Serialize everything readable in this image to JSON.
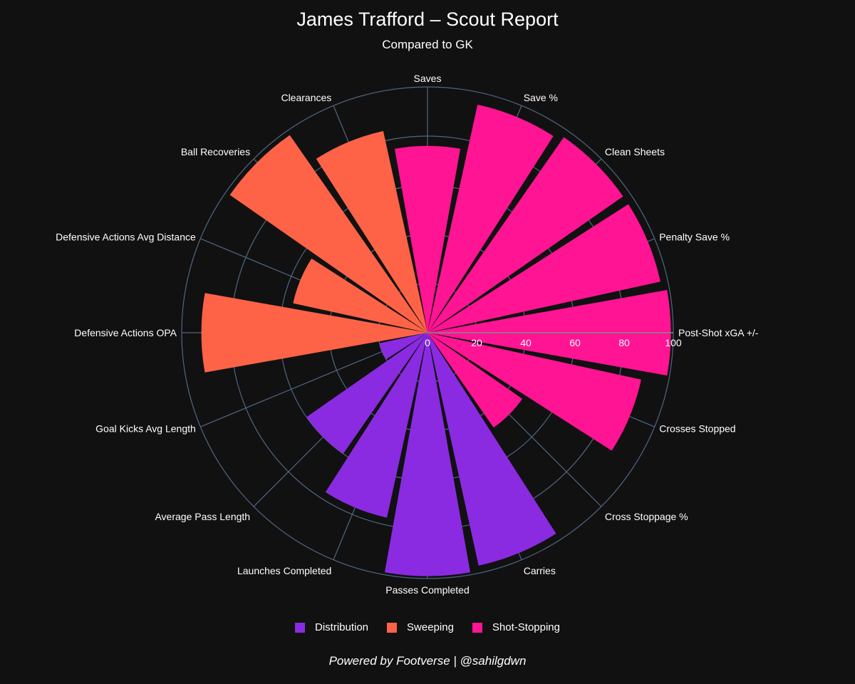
{
  "header": {
    "title": "James Trafford – Scout Report",
    "subtitle": "Compared to GK"
  },
  "footer": {
    "credit": "Powered by Footverse | @sahilgdwn"
  },
  "colors": {
    "background": "#111111",
    "grid": "#506784",
    "Distribution": "#8a2be2",
    "Sweeping": "#ff6347",
    "Shot-Stopping": "#ff1493"
  },
  "chart_data": {
    "type": "barpolar",
    "radial_range": [
      0,
      100
    ],
    "radial_ticks": [
      "0",
      "20",
      "40",
      "60",
      "80",
      "100"
    ],
    "direction": "clockwise",
    "rotation_start": "Saves at top",
    "legend_position": "bottom-center",
    "legend": [
      "Distribution",
      "Sweeping",
      "Shot-Stopping"
    ],
    "categories": [
      {
        "label": "Saves",
        "value": 76,
        "group": "Shot-Stopping"
      },
      {
        "label": "Save %",
        "value": 95,
        "group": "Shot-Stopping"
      },
      {
        "label": "Clean Sheets",
        "value": 97,
        "group": "Shot-Stopping"
      },
      {
        "label": "Penalty Save %",
        "value": 97,
        "group": "Shot-Stopping"
      },
      {
        "label": "Post-Shot xGA +/-",
        "value": 99,
        "group": "Shot-Stopping"
      },
      {
        "label": "Crosses Stopped",
        "value": 89,
        "group": "Shot-Stopping"
      },
      {
        "label": "Cross Stoppage %",
        "value": 47,
        "group": "Shot-Stopping"
      },
      {
        "label": "Carries",
        "value": 97,
        "group": "Distribution"
      },
      {
        "label": "Passes Completed",
        "value": 99,
        "group": "Distribution"
      },
      {
        "label": "Launches Completed",
        "value": 77,
        "group": "Distribution"
      },
      {
        "label": "Average Pass Length",
        "value": 60,
        "group": "Distribution"
      },
      {
        "label": "Goal Kicks Avg Length",
        "value": 20,
        "group": "Distribution"
      },
      {
        "label": "Defensive Actions OPA",
        "value": 92,
        "group": "Sweeping"
      },
      {
        "label": "Defensive Actions Avg Distance",
        "value": 56,
        "group": "Sweeping"
      },
      {
        "label": "Ball Recoveries",
        "value": 98,
        "group": "Sweeping"
      },
      {
        "label": "Clearances",
        "value": 84,
        "group": "Sweeping"
      }
    ]
  }
}
